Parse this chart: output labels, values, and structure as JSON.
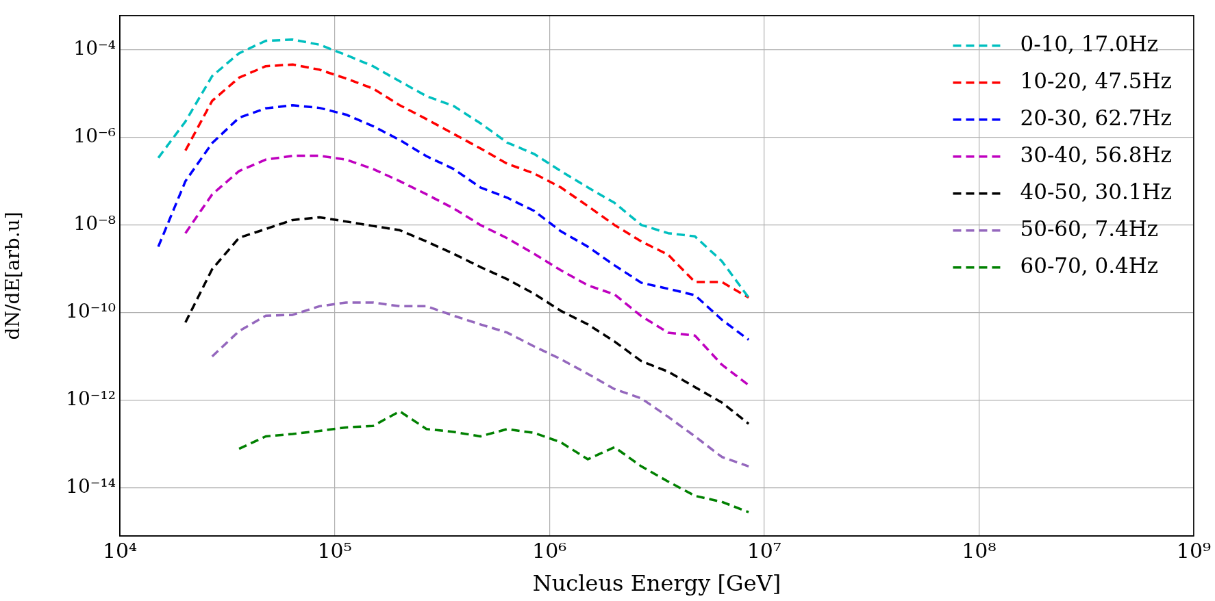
{
  "chart_data": {
    "type": "line",
    "xlabel": "Nucleus Energy [GeV]",
    "ylabel": "dN/dE[arb.u]",
    "log": "xy",
    "xlim": [
      10000,
      1000000000
    ],
    "xticks": [
      {
        "value": 10000,
        "label": "10⁴"
      },
      {
        "value": 100000,
        "label": "10⁵"
      },
      {
        "value": 1000000,
        "label": "10⁶"
      },
      {
        "value": 10000000,
        "label": "10⁷"
      },
      {
        "value": 100000000,
        "label": "10⁸"
      },
      {
        "value": 1000000000,
        "label": "10⁹"
      }
    ],
    "ylim": [
      8e-16,
      0.0006
    ],
    "yticks": [
      {
        "value": 1e-14,
        "label": "10⁻¹⁴"
      },
      {
        "value": 1e-12,
        "label": "10⁻¹²"
      },
      {
        "value": 1e-10,
        "label": "10⁻¹⁰"
      },
      {
        "value": 1e-08,
        "label": "10⁻⁸"
      },
      {
        "value": 1e-06,
        "label": "10⁻⁶"
      },
      {
        "value": 0.0001,
        "label": "10⁻⁴"
      }
    ],
    "grid": true,
    "legend": "top right",
    "marker": "none",
    "line_style": "dashed",
    "series": [
      {
        "name": "0-10, 17.0Hz",
        "color": "#00bfbf",
        "x": [
          15100,
          20200,
          26900,
          35900,
          47800,
          63800,
          85000,
          113000,
          151000,
          201000,
          268000,
          358000,
          477000,
          636000,
          848000,
          1130000,
          1510000,
          2010000,
          2680000,
          3570000,
          4760000,
          6350000,
          8470000
        ],
        "values": [
          3.4e-07,
          2.3e-06,
          2.5e-05,
          8.3e-05,
          0.00016,
          0.00017,
          0.00013,
          7.6e-05,
          4.2e-05,
          1.9e-05,
          8.7e-06,
          5.2e-06,
          2.1e-06,
          7.6e-07,
          4.2e-07,
          1.7e-07,
          7.2e-08,
          3.2e-08,
          1e-08,
          6.5e-09,
          5.5e-09,
          1.5e-09,
          2.2e-10
        ]
      },
      {
        "name": "10-20, 47.5Hz",
        "color": "#ff0000",
        "x": [
          20200,
          26900,
          35900,
          47800,
          63800,
          85000,
          113000,
          151000,
          201000,
          268000,
          358000,
          477000,
          636000,
          848000,
          1130000,
          1510000,
          2010000,
          2680000,
          3570000,
          4760000,
          6350000,
          8470000
        ],
        "values": [
          5e-07,
          6.8e-06,
          2.3e-05,
          4.2e-05,
          4.6e-05,
          3.5e-05,
          2.2e-05,
          1.3e-05,
          5.4e-06,
          2.6e-06,
          1.2e-06,
          5.6e-07,
          2.5e-07,
          1.5e-07,
          7.2e-08,
          2.7e-08,
          1e-08,
          4.2e-09,
          2.1e-09,
          5e-10,
          5e-10,
          2.2e-10
        ]
      },
      {
        "name": "20-30, 62.7Hz",
        "color": "#0000ff",
        "x": [
          15100,
          20200,
          26900,
          35900,
          47800,
          63800,
          85000,
          113000,
          151000,
          201000,
          268000,
          358000,
          477000,
          636000,
          848000,
          1130000,
          1510000,
          2010000,
          2680000,
          3570000,
          4760000,
          6350000,
          8470000
        ],
        "values": [
          3.2e-09,
          1e-07,
          7.4e-07,
          2.8e-06,
          4.6e-06,
          5.4e-06,
          4.7e-06,
          3.3e-06,
          1.8e-06,
          8.7e-07,
          3.7e-07,
          1.9e-07,
          7.2e-08,
          4.2e-08,
          2.1e-08,
          7.2e-09,
          3.2e-09,
          1.2e-09,
          4.8e-10,
          3.5e-10,
          2.5e-10,
          6.9e-11,
          2.4e-11
        ]
      },
      {
        "name": "30-40, 56.8Hz",
        "color": "#bf00bf",
        "x": [
          20200,
          26900,
          35900,
          47800,
          63800,
          85000,
          113000,
          151000,
          201000,
          268000,
          358000,
          477000,
          636000,
          848000,
          1130000,
          1510000,
          2010000,
          2680000,
          3570000,
          4760000,
          6350000,
          8470000
        ],
        "values": [
          6.5e-09,
          5e-08,
          1.7e-07,
          3.1e-07,
          3.8e-07,
          3.8e-07,
          3.1e-07,
          1.9e-07,
          1e-07,
          5e-08,
          2.4e-08,
          1e-08,
          5e-09,
          2.2e-09,
          9.3e-10,
          4.2e-10,
          2.6e-10,
          8.3e-11,
          3.5e-11,
          3e-11,
          6.5e-12,
          2.2e-12
        ]
      },
      {
        "name": "40-50, 30.1Hz",
        "color": "#000000",
        "x": [
          20200,
          26900,
          35900,
          47800,
          63800,
          85000,
          113000,
          151000,
          201000,
          268000,
          358000,
          477000,
          636000,
          848000,
          1130000,
          1510000,
          2010000,
          2680000,
          3570000,
          4760000,
          6350000,
          8470000
        ],
        "values": [
          6e-11,
          9.8e-10,
          5.1e-09,
          8.1e-09,
          1.3e-08,
          1.5e-08,
          1.2e-08,
          9.5e-09,
          7.6e-09,
          4.2e-09,
          2.2e-09,
          1.1e-09,
          5.8e-10,
          2.7e-10,
          1.1e-10,
          5.4e-11,
          2.2e-11,
          7.8e-12,
          4.5e-12,
          2e-12,
          8.9e-13,
          2.9e-13
        ]
      },
      {
        "name": "50-60, 7.4Hz",
        "color": "#9467bd",
        "x": [
          26900,
          35900,
          47800,
          63800,
          85000,
          113000,
          151000,
          201000,
          268000,
          358000,
          477000,
          636000,
          848000,
          1130000,
          1510000,
          2010000,
          2680000,
          3570000,
          4760000,
          6350000,
          8470000
        ],
        "values": [
          1e-11,
          3.8e-11,
          8.5e-11,
          8.9e-11,
          1.4e-10,
          1.7e-10,
          1.7e-10,
          1.4e-10,
          1.4e-10,
          8.5e-11,
          5.4e-11,
          3.5e-11,
          1.7e-11,
          8.7e-12,
          4e-12,
          1.8e-12,
          1.1e-12,
          4.2e-13,
          1.5e-13,
          5.1e-14,
          3.1e-14
        ]
      },
      {
        "name": "60-70, 0.4Hz",
        "color": "#008000",
        "x": [
          35900,
          47800,
          63800,
          85000,
          113000,
          151000,
          201000,
          268000,
          358000,
          477000,
          636000,
          848000,
          1130000,
          1510000,
          2010000,
          2680000,
          3570000,
          4760000,
          6350000,
          8470000
        ],
        "values": [
          7.8e-14,
          1.5e-13,
          1.7e-13,
          2e-13,
          2.4e-13,
          2.6e-13,
          5.6e-13,
          2.2e-13,
          1.9e-13,
          1.5e-13,
          2.2e-13,
          1.8e-13,
          1.1e-13,
          4.5e-14,
          8.5e-14,
          3.1e-14,
          1.4e-14,
          6.6e-15,
          4.8e-15,
          2.8e-15
        ]
      }
    ]
  }
}
